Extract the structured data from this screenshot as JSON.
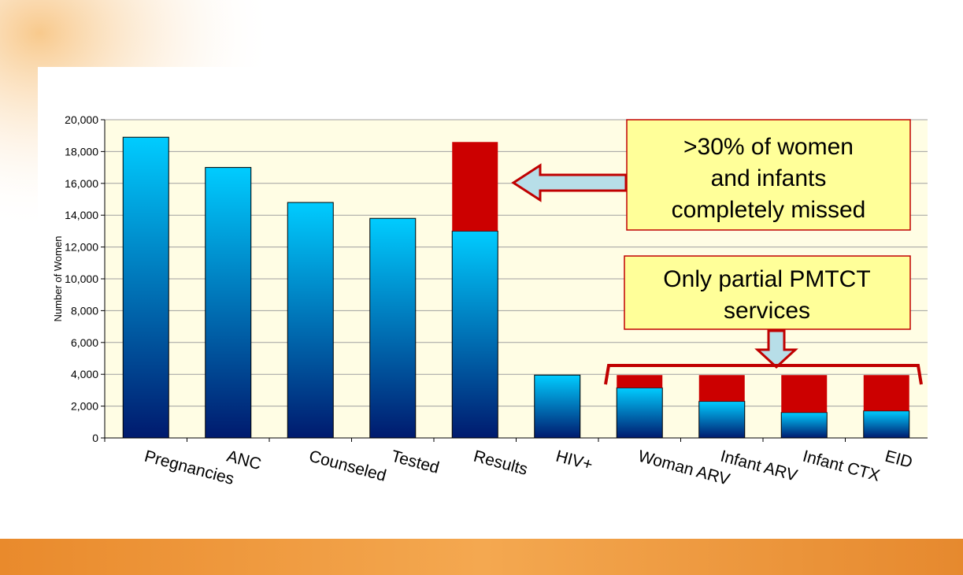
{
  "chart_data": {
    "type": "stacked-bar",
    "ylabel": "Number of Women",
    "categories": [
      "Pregnancies",
      "ANC",
      "Counseled",
      "Tested",
      "Results",
      "HIV+",
      "Woman ARV",
      "Infant ARV",
      "Infant CTX",
      "EID"
    ],
    "series": [
      {
        "color": "#00ccff",
        "values": [
          18900,
          17000,
          14800,
          13800,
          13000,
          3950,
          3150,
          2300,
          1600,
          1700
        ]
      },
      {
        "color": "#cc0000",
        "values": [
          null,
          null,
          null,
          null,
          5600,
          null,
          800,
          1650,
          2350,
          2250
        ]
      }
    ],
    "ylim": [
      0,
      20000
    ],
    "yticks": [
      0,
      {
        "value": 2000,
        "label": "2,000"
      },
      {
        "value": 4000,
        "label": "4,000"
      },
      {
        "value": 6000,
        "label": "6,000"
      },
      {
        "value": 8000,
        "label": "8,000"
      },
      {
        "value": 10000,
        "label": "10,000"
      },
      {
        "value": 12000,
        "label": "12,000"
      },
      {
        "value": 14000,
        "label": "14,000"
      },
      {
        "value": 16000,
        "label": "16,000"
      },
      {
        "value": 18000,
        "label": "18,000"
      },
      {
        "value": 20000,
        "label": "20,000"
      }
    ],
    "grid": true,
    "annotations": [
      {
        "lines": [
          ">30% of women",
          "and infants",
          "completely missed"
        ]
      },
      {
        "lines": [
          "Only partial PMTCT",
          "services"
        ]
      }
    ]
  }
}
